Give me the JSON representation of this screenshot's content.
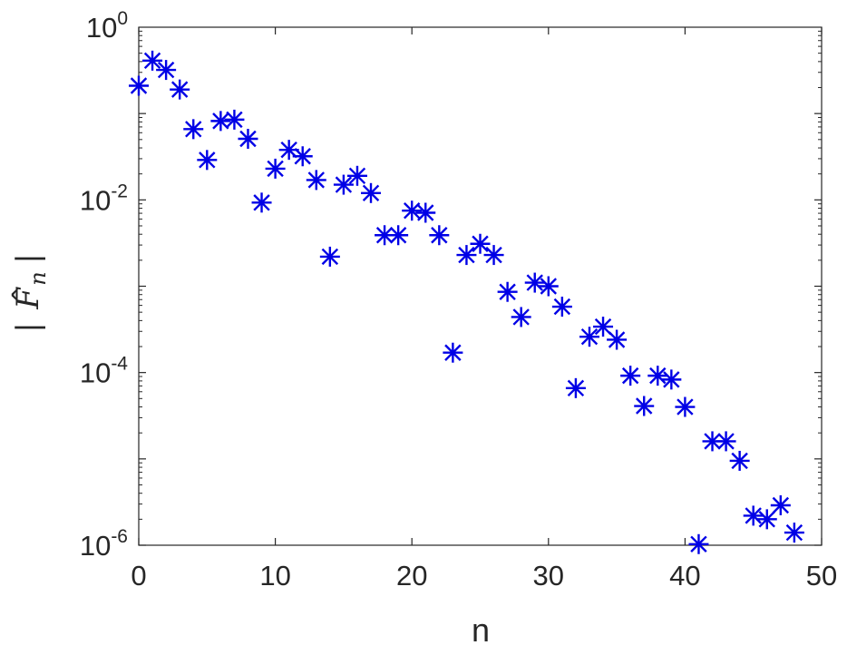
{
  "chart_data": {
    "type": "scatter",
    "title": "",
    "xlabel": "n",
    "ylabel_tex": "|F̂n|",
    "ylabel_parts": {
      "bar_left": "|",
      "symbol": "F",
      "hat": "^",
      "subscript": "n",
      "bar_right": "|"
    },
    "xlim": [
      0,
      50
    ],
    "ylim": [
      1e-06,
      1
    ],
    "yscale": "log",
    "grid": false,
    "marker": "asterisk",
    "color": "#0000E6",
    "x_ticks": [
      0,
      10,
      20,
      30,
      40,
      50
    ],
    "x_tick_labels": [
      "0",
      "10",
      "20",
      "30",
      "40",
      "50"
    ],
    "y_ticks": [
      {
        "value": 1,
        "base": "10",
        "exp": "0"
      },
      {
        "value": 0.01,
        "base": "10",
        "exp": "-2"
      },
      {
        "value": 0.0001,
        "base": "10",
        "exp": "-4"
      },
      {
        "value": 1e-06,
        "base": "10",
        "exp": "-6"
      }
    ],
    "points": [
      [
        0,
        0.21
      ],
      [
        1,
        0.41
      ],
      [
        2,
        0.32
      ],
      [
        3,
        0.19
      ],
      [
        4,
        0.066
      ],
      [
        5,
        0.029
      ],
      [
        6,
        0.082
      ],
      [
        7,
        0.085
      ],
      [
        8,
        0.051
      ],
      [
        9,
        0.0093
      ],
      [
        10,
        0.023
      ],
      [
        11,
        0.038
      ],
      [
        12,
        0.032
      ],
      [
        13,
        0.017
      ],
      [
        14,
        0.0022
      ],
      [
        15,
        0.015
      ],
      [
        16,
        0.019
      ],
      [
        17,
        0.012
      ],
      [
        18,
        0.0039
      ],
      [
        19,
        0.0039
      ],
      [
        20,
        0.0075
      ],
      [
        21,
        0.0071
      ],
      [
        22,
        0.0039
      ],
      [
        23,
        0.00017
      ],
      [
        24,
        0.0023
      ],
      [
        25,
        0.0031
      ],
      [
        26,
        0.0023
      ],
      [
        27,
        0.00086
      ],
      [
        28,
        0.00044
      ],
      [
        29,
        0.0011
      ],
      [
        30,
        0.001
      ],
      [
        31,
        0.00058
      ],
      [
        32,
        6.6e-05
      ],
      [
        33,
        0.00026
      ],
      [
        34,
        0.00034
      ],
      [
        35,
        0.00024
      ],
      [
        36,
        9.2e-05
      ],
      [
        37,
        4.1e-05
      ],
      [
        38,
        9.2e-05
      ],
      [
        39,
        8.3e-05
      ],
      [
        40,
        4e-05
      ],
      [
        41,
        1.03e-06
      ],
      [
        42,
        1.6e-05
      ],
      [
        43,
        1.6e-05
      ],
      [
        44,
        9.5e-06
      ],
      [
        45,
        2.2e-06
      ],
      [
        46,
        2e-06
      ],
      [
        47,
        2.9e-06
      ],
      [
        48,
        1.4e-06
      ]
    ]
  }
}
